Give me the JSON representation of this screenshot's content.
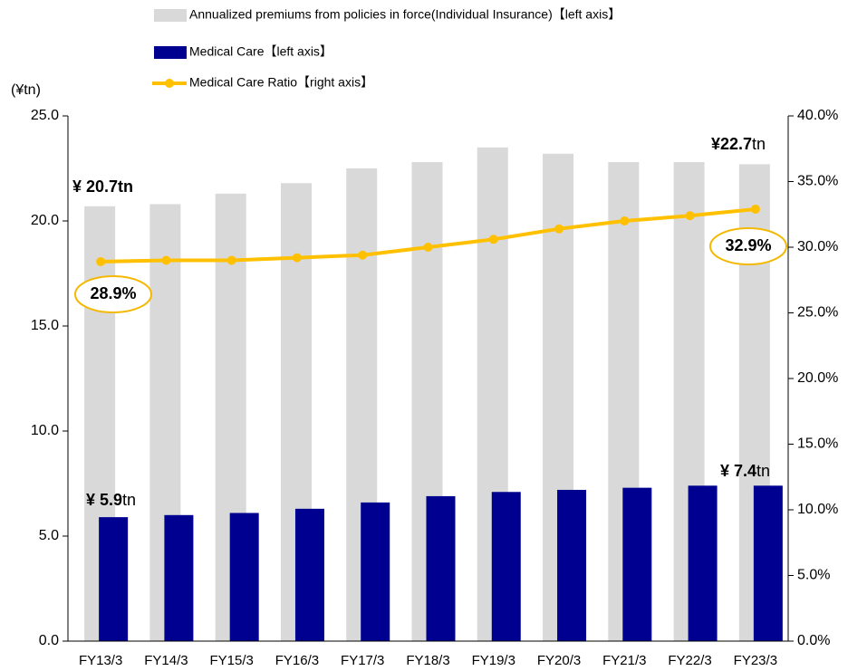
{
  "chart_data": {
    "type": "bar",
    "y_unit": "(¥tn)",
    "categories": [
      "FY13/3",
      "FY14/3",
      "FY15/3",
      "FY16/3",
      "FY17/3",
      "FY18/3",
      "FY19/3",
      "FY20/3",
      "FY21/3",
      "FY22/3",
      "FY23/3"
    ],
    "series": [
      {
        "name": "Annualized premiums from policies in force(Individual Insurance)【left axis】",
        "color": "#d9d9d9",
        "type": "bar",
        "axis": "y",
        "values": [
          20.7,
          20.8,
          21.3,
          21.8,
          22.5,
          22.8,
          23.5,
          23.2,
          22.8,
          22.8,
          22.7
        ]
      },
      {
        "name": "Medical Care【left axis】",
        "color": "#000090",
        "type": "bar",
        "axis": "y",
        "values": [
          5.9,
          6.0,
          6.1,
          6.3,
          6.6,
          6.9,
          7.1,
          7.2,
          7.3,
          7.4,
          7.4
        ]
      },
      {
        "name": "Medical Care Ratio【right axis】",
        "color": "#ffc000",
        "type": "line",
        "axis": "y2",
        "values": [
          28.9,
          29.0,
          29.0,
          29.2,
          29.4,
          30.0,
          30.6,
          31.4,
          32.0,
          32.4,
          32.9
        ]
      }
    ],
    "ylim": [
      0,
      25
    ],
    "yticks": [
      {
        "value": 0,
        "label": "0.0"
      },
      {
        "value": 5,
        "label": "5.0"
      },
      {
        "value": 10,
        "label": "10.0"
      },
      {
        "value": 15,
        "label": "15.0"
      },
      {
        "value": 20,
        "label": "20.0"
      },
      {
        "value": 25,
        "label": "25.0"
      }
    ],
    "y2lim": [
      0,
      40
    ],
    "y2ticks": [
      {
        "value": 0,
        "label": "0.0%"
      },
      {
        "value": 5,
        "label": "5.0%"
      },
      {
        "value": 10,
        "label": "10.0%"
      },
      {
        "value": 15,
        "label": "15.0%"
      },
      {
        "value": 20,
        "label": "20.0%"
      },
      {
        "value": 25,
        "label": "25.0%"
      },
      {
        "value": 30,
        "label": "30.0%"
      },
      {
        "value": 35,
        "label": "35.0%"
      },
      {
        "value": 40,
        "label": "40.0%"
      }
    ],
    "annotations": [
      {
        "text": "¥ 20.7tn",
        "suffix": ""
      },
      {
        "text": "¥ 5.9",
        "suffix": "tn"
      },
      {
        "text": "¥22.7",
        "suffix": "tn"
      },
      {
        "text": "¥ 7.4",
        "suffix": "tn"
      },
      {
        "text": "28.9%",
        "suffix": ""
      },
      {
        "text": "32.9%",
        "suffix": ""
      }
    ]
  }
}
